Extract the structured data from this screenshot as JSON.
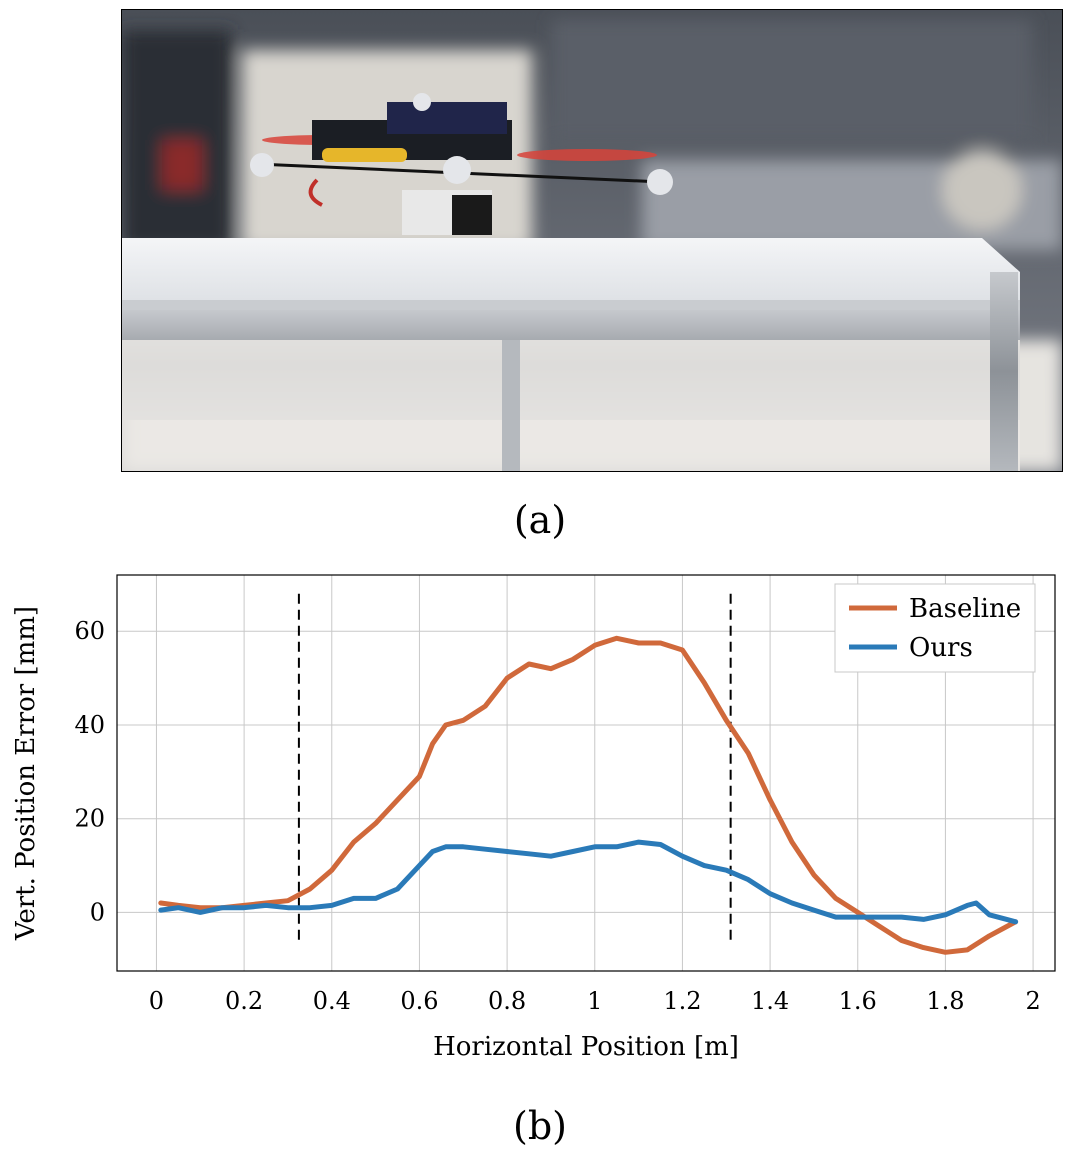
{
  "figure": {
    "caption_a": "(a)",
    "caption_b": "(b)"
  },
  "colors": {
    "baseline": "#d0693b",
    "ours": "#2a7ab8",
    "grid": "#c8c8c8",
    "marker": "#000000"
  },
  "chart_data": {
    "type": "line",
    "title": "",
    "xlabel": "Horizontal Position [m]",
    "ylabel": "Vert. Position Error [mm]",
    "xlim": [
      -0.09,
      2.05
    ],
    "ylim": [
      -12.5,
      72
    ],
    "xticks": [
      0,
      0.2,
      0.4,
      0.6,
      0.8,
      1,
      1.2,
      1.4,
      1.6,
      1.8,
      2
    ],
    "xtick_labels": [
      "0",
      "0.2",
      "0.4",
      "0.6",
      "0.8",
      "1",
      "1.2",
      "1.4",
      "1.6",
      "1.8",
      "2"
    ],
    "yticks": [
      0,
      20,
      40,
      60
    ],
    "ytick_labels": [
      "0",
      "20",
      "40",
      "60"
    ],
    "grid": true,
    "legend_position": "top-right",
    "vertical_markers": [
      0.325,
      1.31
    ],
    "marker_yrange": [
      -7,
      68
    ],
    "series": [
      {
        "name": "Baseline",
        "color": "#d0693b",
        "x": [
          0.01,
          0.05,
          0.1,
          0.15,
          0.2,
          0.25,
          0.3,
          0.35,
          0.4,
          0.45,
          0.5,
          0.55,
          0.6,
          0.63,
          0.66,
          0.7,
          0.75,
          0.8,
          0.85,
          0.9,
          0.95,
          1.0,
          1.05,
          1.1,
          1.15,
          1.2,
          1.25,
          1.3,
          1.35,
          1.4,
          1.45,
          1.5,
          1.55,
          1.6,
          1.65,
          1.7,
          1.75,
          1.8,
          1.85,
          1.9,
          1.94,
          1.96
        ],
        "y": [
          2,
          1.5,
          1,
          1,
          1.5,
          2,
          2.5,
          5,
          9,
          15,
          19,
          24,
          29,
          36,
          40,
          41,
          44,
          50,
          53,
          52,
          54,
          57,
          58.5,
          57.5,
          57.5,
          56,
          49,
          41,
          34,
          24,
          15,
          8,
          3,
          0,
          -3,
          -6,
          -7.5,
          -8.5,
          -8,
          -5,
          -3,
          -2
        ]
      },
      {
        "name": "Ours",
        "color": "#2a7ab8",
        "x": [
          0.01,
          0.05,
          0.1,
          0.15,
          0.2,
          0.25,
          0.3,
          0.35,
          0.4,
          0.45,
          0.5,
          0.55,
          0.6,
          0.63,
          0.66,
          0.7,
          0.75,
          0.8,
          0.85,
          0.9,
          0.95,
          1.0,
          1.05,
          1.1,
          1.15,
          1.2,
          1.25,
          1.3,
          1.35,
          1.4,
          1.45,
          1.5,
          1.55,
          1.6,
          1.65,
          1.7,
          1.75,
          1.8,
          1.85,
          1.87,
          1.9,
          1.94,
          1.96
        ],
        "y": [
          0.5,
          1,
          0,
          1,
          1,
          1.5,
          1,
          1,
          1.5,
          3,
          3,
          5,
          10,
          13,
          14,
          14,
          13.5,
          13,
          12.5,
          12,
          13,
          14,
          14,
          15,
          14.5,
          12,
          10,
          9,
          7,
          4,
          2,
          0.5,
          -1,
          -1,
          -1,
          -1,
          -1.5,
          -0.5,
          1.5,
          2,
          -0.5,
          -1.5,
          -2
        ]
      }
    ]
  }
}
